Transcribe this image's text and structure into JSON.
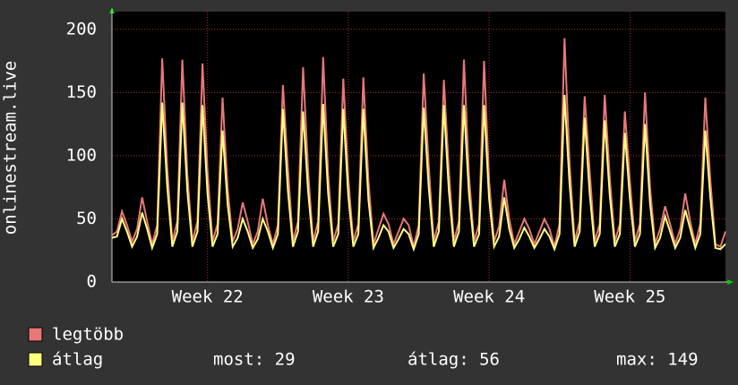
{
  "chart_data": {
    "type": "line",
    "y_label": "onlinestream.live",
    "categories": [
      null,
      null,
      null,
      null,
      null,
      null,
      null,
      null,
      null,
      null,
      null,
      null,
      null,
      null,
      null,
      null,
      null,
      null,
      null,
      "Week 22",
      null,
      null,
      null,
      null,
      null,
      null,
      null,
      null,
      null,
      null,
      null,
      null,
      null,
      null,
      null,
      null,
      null,
      null,
      null,
      null,
      null,
      null,
      null,
      null,
      null,
      null,
      null,
      "Week 23",
      null,
      null,
      null,
      null,
      null,
      null,
      null,
      null,
      null,
      null,
      null,
      null,
      null,
      null,
      null,
      null,
      null,
      null,
      null,
      null,
      null,
      null,
      null,
      null,
      null,
      null,
      null,
      "Week 24",
      null,
      null,
      null,
      null,
      null,
      null,
      null,
      null,
      null,
      null,
      null,
      null,
      null,
      null,
      null,
      null,
      null,
      null,
      null,
      null,
      null,
      null,
      null,
      null,
      null,
      null,
      null,
      "Week 25",
      null,
      null,
      null,
      null,
      null,
      null,
      null,
      null,
      null,
      null,
      null,
      null,
      null,
      null,
      null,
      null,
      null,
      null,
      null
    ],
    "series": [
      {
        "name": "legtöbb",
        "color": "#e87878",
        "values": [
          37,
          40,
          56,
          45,
          32,
          42,
          67,
          48,
          30,
          45,
          177,
          90,
          32,
          48,
          176,
          85,
          32,
          48,
          173,
          88,
          32,
          46,
          146,
          75,
          32,
          42,
          63,
          48,
          30,
          40,
          66,
          45,
          30,
          45,
          156,
          90,
          32,
          48,
          170,
          88,
          32,
          48,
          178,
          85,
          32,
          46,
          161,
          82,
          32,
          46,
          162,
          80,
          30,
          42,
          54,
          46,
          30,
          40,
          50,
          45,
          28,
          45,
          165,
          92,
          32,
          48,
          160,
          88,
          32,
          48,
          176,
          85,
          32,
          46,
          175,
          80,
          32,
          44,
          81,
          50,
          30,
          40,
          50,
          42,
          30,
          40,
          50,
          42,
          28,
          46,
          193,
          95,
          32,
          48,
          147,
          88,
          32,
          46,
          148,
          82,
          32,
          46,
          135,
          80,
          32,
          46,
          150,
          75,
          30,
          42,
          60,
          46,
          30,
          42,
          70,
          48,
          30,
          46,
          146,
          80,
          30,
          28,
          40
        ]
      },
      {
        "name": "átlag",
        "color": "#ffff80",
        "values": [
          35,
          36,
          50,
          40,
          28,
          36,
          55,
          42,
          27,
          38,
          142,
          75,
          28,
          40,
          142,
          72,
          28,
          40,
          140,
          70,
          28,
          38,
          120,
          62,
          28,
          35,
          50,
          40,
          27,
          34,
          50,
          40,
          27,
          38,
          137,
          72,
          28,
          40,
          135,
          72,
          28,
          40,
          141,
          70,
          28,
          38,
          137,
          68,
          28,
          38,
          137,
          65,
          27,
          35,
          45,
          40,
          27,
          34,
          42,
          38,
          26,
          38,
          138,
          75,
          28,
          40,
          140,
          72,
          28,
          40,
          140,
          70,
          28,
          38,
          140,
          66,
          28,
          36,
          67,
          42,
          27,
          34,
          43,
          36,
          27,
          34,
          42,
          36,
          26,
          38,
          148,
          78,
          28,
          40,
          130,
          70,
          28,
          38,
          128,
          68,
          28,
          38,
          118,
          66,
          28,
          38,
          125,
          62,
          27,
          35,
          52,
          40,
          27,
          35,
          57,
          42,
          27,
          38,
          120,
          66,
          27,
          26,
          30
        ]
      }
    ],
    "stats": [
      "most: 29",
      "átlag: 56",
      "max: 149"
    ],
    "ylim": [
      0,
      214
    ],
    "yticks": [
      0,
      50,
      100,
      150,
      200
    ],
    "grid": true
  }
}
